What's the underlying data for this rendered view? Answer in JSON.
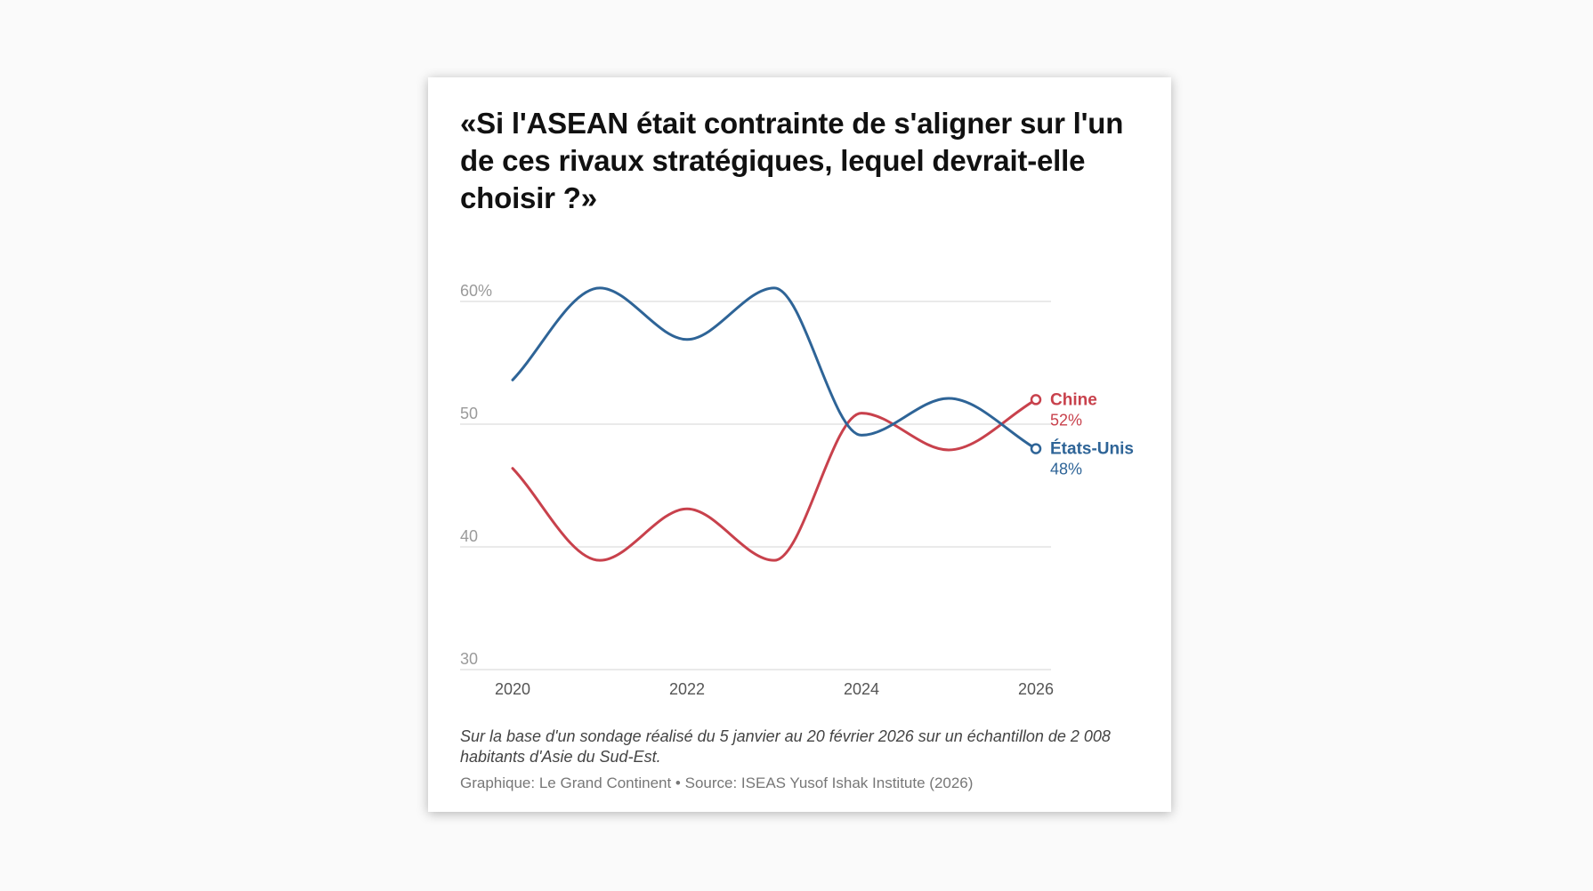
{
  "title": "«Si l'ASEAN était contrainte de s'aligner sur l'un de ces rivaux stratégiques, lequel devrait-elle choisir ?»",
  "note": "Sur la base d'un sondage réalisé du 5 janvier au 20 février 2026 sur un échantillon de 2 008 habitants d'Asie du Sud-Est.",
  "source": "Graphique: Le Grand Continent • Source: ISEAS Yusof Ishak Institute (2026)",
  "colors": {
    "china": "#c8414c",
    "usa": "#2e6497",
    "grid": "#e4e4e4",
    "tick": "#9a9a9a",
    "xtick": "#555555"
  },
  "chart_data": {
    "type": "line",
    "title": "«Si l'ASEAN était contrainte de s'aligner sur l'un de ces rivaux stratégiques, lequel devrait-elle choisir ?»",
    "xlabel": "",
    "ylabel": "",
    "x": [
      2020,
      2021,
      2022,
      2023,
      2024,
      2025,
      2026
    ],
    "xlim": [
      2020,
      2026
    ],
    "ylim": [
      30,
      62
    ],
    "yticks": [
      {
        "value": 60,
        "label": "60%"
      },
      {
        "value": 50,
        "label": "50"
      },
      {
        "value": 40,
        "label": "40"
      },
      {
        "value": 30,
        "label": "30"
      }
    ],
    "xticks": [
      {
        "value": 2020,
        "label": "2020"
      },
      {
        "value": 2022,
        "label": "2022"
      },
      {
        "value": 2024,
        "label": "2024"
      },
      {
        "value": 2026,
        "label": "2026"
      }
    ],
    "grid": true,
    "series": [
      {
        "key": "china",
        "name": "Chine",
        "end_label": "52%",
        "values": [
          46.4,
          38.9,
          43.1,
          38.9,
          50.9,
          47.9,
          52.0
        ]
      },
      {
        "key": "usa",
        "name": "États-Unis",
        "end_label": "48%",
        "values": [
          53.6,
          61.1,
          56.9,
          61.1,
          49.1,
          52.1,
          48.0
        ]
      }
    ]
  }
}
